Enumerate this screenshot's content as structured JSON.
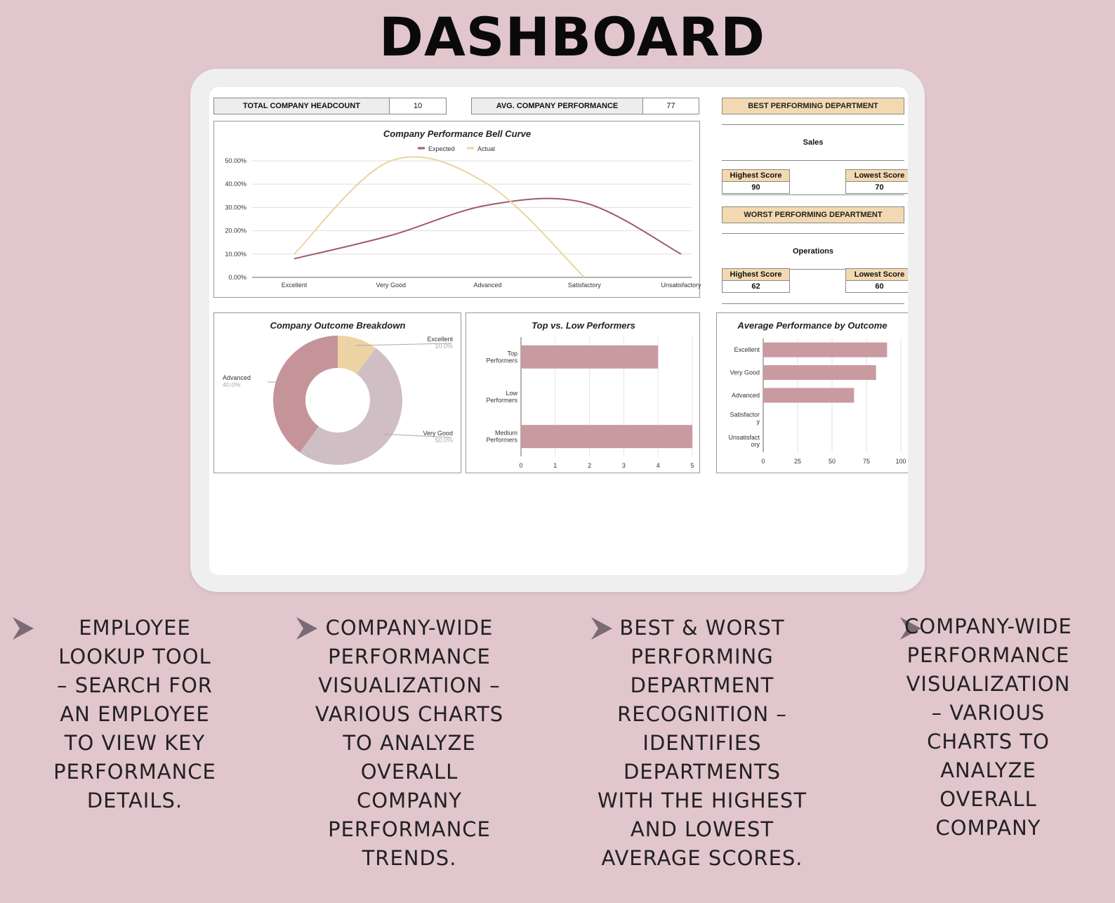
{
  "page_title": "DASHBOARD",
  "kpis": {
    "headcount_label": "TOTAL COMPANY HEADCOUNT",
    "headcount_value": "10",
    "performance_label": "AVG. COMPANY PERFORMANCE",
    "performance_value": "77"
  },
  "best_dept": {
    "title": "BEST PERFORMING DEPARTMENT",
    "name": "Sales",
    "highest_label": "Highest Score",
    "highest_value": "90",
    "lowest_label": "Lowest Score",
    "lowest_value": "70"
  },
  "worst_dept": {
    "title": "WORST PERFORMING DEPARTMENT",
    "name": "Operations",
    "highest_label": "Highest Score",
    "highest_value": "62",
    "lowest_label": "Lowest Score",
    "lowest_value": "60"
  },
  "features": [
    "EMPLOYEE LOOKUP TOOL – SEARCH FOR AN EMPLOYEE TO VIEW KEY PERFORMANCE DETAILS.",
    "COMPANY-WIDE PERFORMANCE VISUALIZATION – VARIOUS CHARTS TO ANALYZE OVERALL COMPANY PERFORMANCE TRENDS.",
    "BEST & WORST PERFORMING DEPARTMENT RECOGNITION – IDENTIFIES DEPARTMENTS WITH THE HIGHEST AND LOWEST AVERAGE SCORES.",
    "COMPANY-WIDE PERFORMANCE VISUALIZATION – VARIOUS CHARTS TO ANALYZE OVERALL COMPANY"
  ],
  "colors": {
    "background": "#e2c6cd",
    "expected": "#9e5b6e",
    "actual": "#ecd3a3",
    "bar": "#c99aa0",
    "donut_excellent": "#ecd3a3",
    "donut_very_good": "#d0bec5",
    "donut_advanced": "#c49499",
    "header_fill": "#f3d9b1"
  },
  "chart_data": [
    {
      "type": "line",
      "title": "Company Performance Bell Curve",
      "categories": [
        "Excellent",
        "Very Good",
        "Advanced",
        "Satisfactory",
        "Unsatisfactory"
      ],
      "series": [
        {
          "name": "Expected",
          "values": [
            8,
            18,
            31,
            32,
            10
          ]
        },
        {
          "name": "Actual",
          "values": [
            10,
            50,
            40,
            0,
            null
          ]
        }
      ],
      "ylim": [
        0,
        50
      ],
      "yticks": [
        "0.00%",
        "10.00%",
        "20.00%",
        "30.00%",
        "40.00%",
        "50.00%"
      ],
      "legend": "top",
      "grid": true
    },
    {
      "type": "pie",
      "title": "Company Outcome Breakdown",
      "slices": [
        {
          "label": "Excellent",
          "value": 10,
          "text": "10.0%"
        },
        {
          "label": "Very Good",
          "value": 50,
          "text": "50.0%"
        },
        {
          "label": "Advanced",
          "value": 40,
          "text": "40.0%"
        }
      ]
    },
    {
      "type": "bar",
      "title": "Top vs. Low Performers",
      "orientation": "horizontal",
      "categories": [
        "Top Performers",
        "Low Performers",
        "Medium Performers"
      ],
      "category_lines": [
        [
          "Top",
          "Performers"
        ],
        [
          "Low",
          "Performers"
        ],
        [
          "Medium",
          "Performers"
        ]
      ],
      "values": [
        4,
        0,
        5
      ],
      "xlim": [
        0,
        5
      ],
      "xticks": [
        "0",
        "1",
        "2",
        "3",
        "4",
        "5"
      ],
      "grid": true
    },
    {
      "type": "bar",
      "title": "Average Performance by Outcome",
      "orientation": "horizontal",
      "categories": [
        "Excellent",
        "Very Good",
        "Advanced",
        "Satisfactory",
        "Unsatisfactory"
      ],
      "category_lines": [
        [
          "Excellent"
        ],
        [
          "Very Good"
        ],
        [
          "Advanced"
        ],
        [
          "Satisfactor",
          "y"
        ],
        [
          "Unsatisfact",
          "ory"
        ]
      ],
      "values": [
        90,
        82,
        66,
        0,
        0
      ],
      "xlim": [
        0,
        100
      ],
      "xticks": [
        "0",
        "25",
        "50",
        "75",
        "100"
      ],
      "grid": true
    }
  ]
}
